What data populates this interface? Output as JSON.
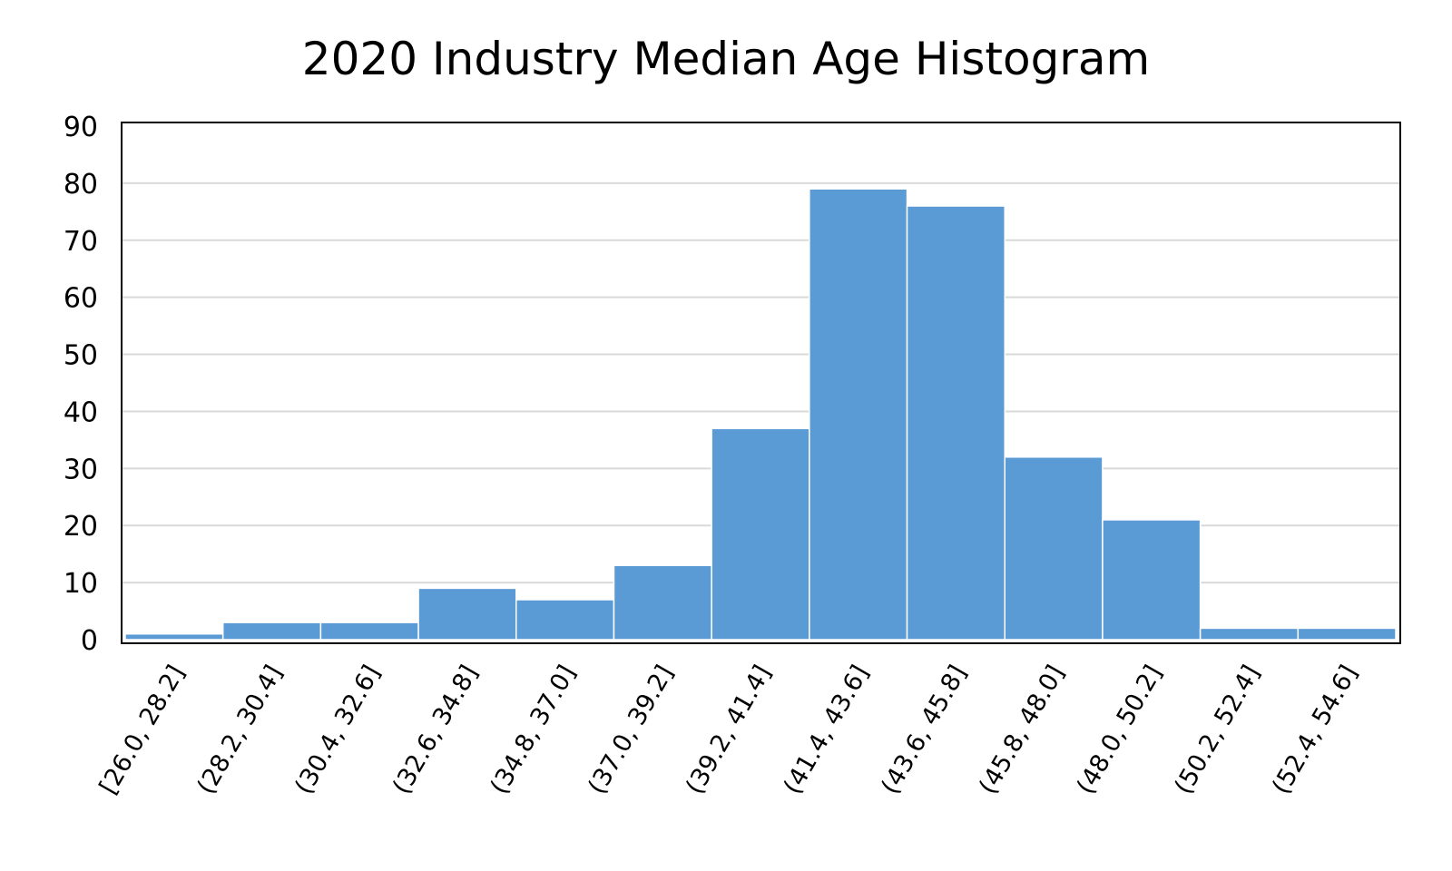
{
  "chart_data": {
    "type": "bar",
    "title": "2020 Industry Median Age Histogram",
    "xlabel": "",
    "ylabel": "",
    "categories": [
      "[26.0, 28.2]",
      "(28.2, 30.4]",
      "(30.4, 32.6]",
      "(32.6, 34.8]",
      "(34.8, 37.0]",
      "(37.0, 39.2]",
      "(39.2, 41.4]",
      "(41.4, 43.6]",
      "(43.6, 45.8]",
      "(45.8, 48.0]",
      "(48.0, 50.2]",
      "(50.2, 52.4]",
      "(52.4, 54.6]"
    ],
    "values": [
      1,
      3,
      3,
      9,
      7,
      13,
      37,
      79,
      76,
      32,
      21,
      2,
      2
    ],
    "ylim": [
      0,
      90
    ],
    "yticks": [
      0,
      10,
      20,
      30,
      40,
      50,
      60,
      70,
      80,
      90
    ],
    "grid": true,
    "legend": "none",
    "bar_color": "#5b9bd5",
    "bar_edge_color": "#ffffff",
    "grid_color": "#d9d9d9",
    "frame_color": "#000000"
  }
}
